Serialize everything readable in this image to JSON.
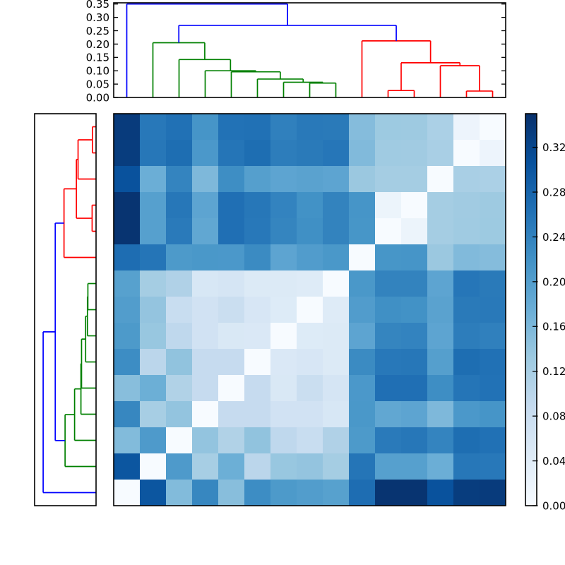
{
  "palette": {
    "background": "#ffffff",
    "axis_color": "#000000",
    "cluster_colors": {
      "blue": "#0000ff",
      "green": "#008000",
      "red": "#ff0000"
    },
    "colormap_stops": [
      "#f7fbff",
      "#deebf7",
      "#c6dbef",
      "#9ecae1",
      "#6baed6",
      "#4292c6",
      "#2171b5",
      "#08519c",
      "#08306b"
    ]
  },
  "chart_data": {
    "type": "heatmap",
    "subtype": "clustermap",
    "title": "",
    "description": "Hierarchically clustered 15x15 distance matrix with top and left dendrograms (scipy-style), Blues colormap heatmap and vertical colorbar. Column leaf order is L0..L14 left-to-right; rows show the same leaves in reversed order (row i = leaf 14-i), so zero-distance white cells run along the anti-diagonal.",
    "n_leaves": 15,
    "colormap": "Blues",
    "vmin": 0.0,
    "vmax": 0.35,
    "grid": false,
    "legend": false,
    "heatmap_rows_top_to_bottom": [
      [
        0.335,
        0.253,
        0.263,
        0.214,
        0.261,
        0.263,
        0.242,
        0.252,
        0.251,
        0.153,
        0.132,
        0.131,
        0.117,
        0.018,
        0.0
      ],
      [
        0.333,
        0.255,
        0.267,
        0.209,
        0.257,
        0.267,
        0.246,
        0.251,
        0.256,
        0.156,
        0.129,
        0.128,
        0.119,
        0.0,
        0.018
      ],
      [
        0.305,
        0.175,
        0.237,
        0.159,
        0.224,
        0.199,
        0.19,
        0.193,
        0.19,
        0.134,
        0.124,
        0.124,
        0.0,
        0.119,
        0.117
      ],
      [
        0.345,
        0.197,
        0.254,
        0.19,
        0.265,
        0.254,
        0.238,
        0.219,
        0.239,
        0.214,
        0.02,
        0.0,
        0.124,
        0.128,
        0.131
      ],
      [
        0.345,
        0.197,
        0.25,
        0.186,
        0.265,
        0.253,
        0.236,
        0.222,
        0.239,
        0.213,
        0.0,
        0.02,
        0.124,
        0.129,
        0.132
      ],
      [
        0.268,
        0.257,
        0.207,
        0.21,
        0.209,
        0.228,
        0.19,
        0.203,
        0.21,
        0.0,
        0.213,
        0.214,
        0.134,
        0.156,
        0.153
      ],
      [
        0.196,
        0.124,
        0.112,
        0.056,
        0.06,
        0.047,
        0.047,
        0.044,
        0.0,
        0.21,
        0.239,
        0.239,
        0.19,
        0.256,
        0.251
      ],
      [
        0.202,
        0.14,
        0.083,
        0.067,
        0.08,
        0.057,
        0.045,
        0.0,
        0.044,
        0.203,
        0.222,
        0.219,
        0.193,
        0.251,
        0.252
      ],
      [
        0.207,
        0.136,
        0.095,
        0.068,
        0.052,
        0.051,
        0.0,
        0.045,
        0.047,
        0.19,
        0.236,
        0.238,
        0.19,
        0.246,
        0.242
      ],
      [
        0.225,
        0.1,
        0.142,
        0.088,
        0.088,
        0.0,
        0.051,
        0.057,
        0.047,
        0.228,
        0.253,
        0.254,
        0.199,
        0.267,
        0.263
      ],
      [
        0.15,
        0.174,
        0.111,
        0.088,
        0.0,
        0.088,
        0.052,
        0.08,
        0.06,
        0.209,
        0.265,
        0.265,
        0.224,
        0.257,
        0.261
      ],
      [
        0.233,
        0.121,
        0.141,
        0.0,
        0.088,
        0.088,
        0.068,
        0.067,
        0.056,
        0.21,
        0.186,
        0.19,
        0.159,
        0.209,
        0.214
      ],
      [
        0.155,
        0.206,
        0.0,
        0.141,
        0.111,
        0.142,
        0.095,
        0.083,
        0.112,
        0.207,
        0.25,
        0.254,
        0.237,
        0.267,
        0.263
      ],
      [
        0.3,
        0.0,
        0.206,
        0.121,
        0.174,
        0.1,
        0.136,
        0.14,
        0.124,
        0.257,
        0.197,
        0.197,
        0.175,
        0.255,
        0.253
      ],
      [
        0.0,
        0.3,
        0.155,
        0.233,
        0.15,
        0.225,
        0.207,
        0.202,
        0.196,
        0.268,
        0.345,
        0.345,
        0.305,
        0.333,
        0.335
      ]
    ],
    "row_order_note": "row i corresponds to column leaf (14 - i)",
    "linkage": [
      {
        "id": "G7",
        "left": "L7",
        "right": "L8",
        "height": 0.054,
        "color": "green"
      },
      {
        "id": "G6",
        "left": "L6",
        "right": "G7",
        "height": 0.057,
        "color": "green"
      },
      {
        "id": "G5",
        "left": "L5",
        "right": "G6",
        "height": 0.069,
        "color": "green"
      },
      {
        "id": "G4",
        "left": "L4",
        "right": "G5",
        "height": 0.096,
        "color": "green"
      },
      {
        "id": "G3",
        "left": "L3",
        "right": "G4",
        "height": 0.1,
        "color": "green"
      },
      {
        "id": "G2",
        "left": "L2",
        "right": "G3",
        "height": 0.142,
        "color": "green"
      },
      {
        "id": "G1",
        "left": "L1",
        "right": "G2",
        "height": 0.205,
        "color": "green"
      },
      {
        "id": "R4",
        "left": "L13",
        "right": "L14",
        "height": 0.024,
        "color": "red"
      },
      {
        "id": "R3",
        "left": "L12",
        "right": "R4",
        "height": 0.119,
        "color": "red"
      },
      {
        "id": "R5",
        "left": "L10",
        "right": "L11",
        "height": 0.026,
        "color": "red"
      },
      {
        "id": "R2",
        "left": "R5",
        "right": "R3",
        "height": 0.13,
        "color": "red"
      },
      {
        "id": "R1",
        "left": "L9",
        "right": "R2",
        "height": 0.212,
        "color": "red"
      },
      {
        "id": "B",
        "left": "G1",
        "right": "R1",
        "height": 0.27,
        "color": "blue"
      },
      {
        "id": "ROOT",
        "left": "L0",
        "right": "B",
        "height": 0.35,
        "color": "blue"
      }
    ],
    "clusters": {
      "blue_singleton": "L0",
      "green": "L1-L8",
      "red": "L9-L14"
    },
    "dendrogram_value_axis": {
      "tick_values": [
        0.0,
        0.05,
        0.1,
        0.15,
        0.2,
        0.25,
        0.3,
        0.35
      ],
      "tick_labels": [
        "0.00",
        "0.05",
        "0.10",
        "0.15",
        "0.20",
        "0.25",
        "0.30",
        "0.35"
      ]
    },
    "colorbar_axis": {
      "tick_values": [
        0.0,
        0.04,
        0.08,
        0.12,
        0.16,
        0.2,
        0.24,
        0.28,
        0.32
      ],
      "tick_labels": [
        "0.00",
        "0.04",
        "0.08",
        "0.12",
        "0.16",
        "0.20",
        "0.24",
        "0.28",
        "0.32"
      ]
    }
  }
}
